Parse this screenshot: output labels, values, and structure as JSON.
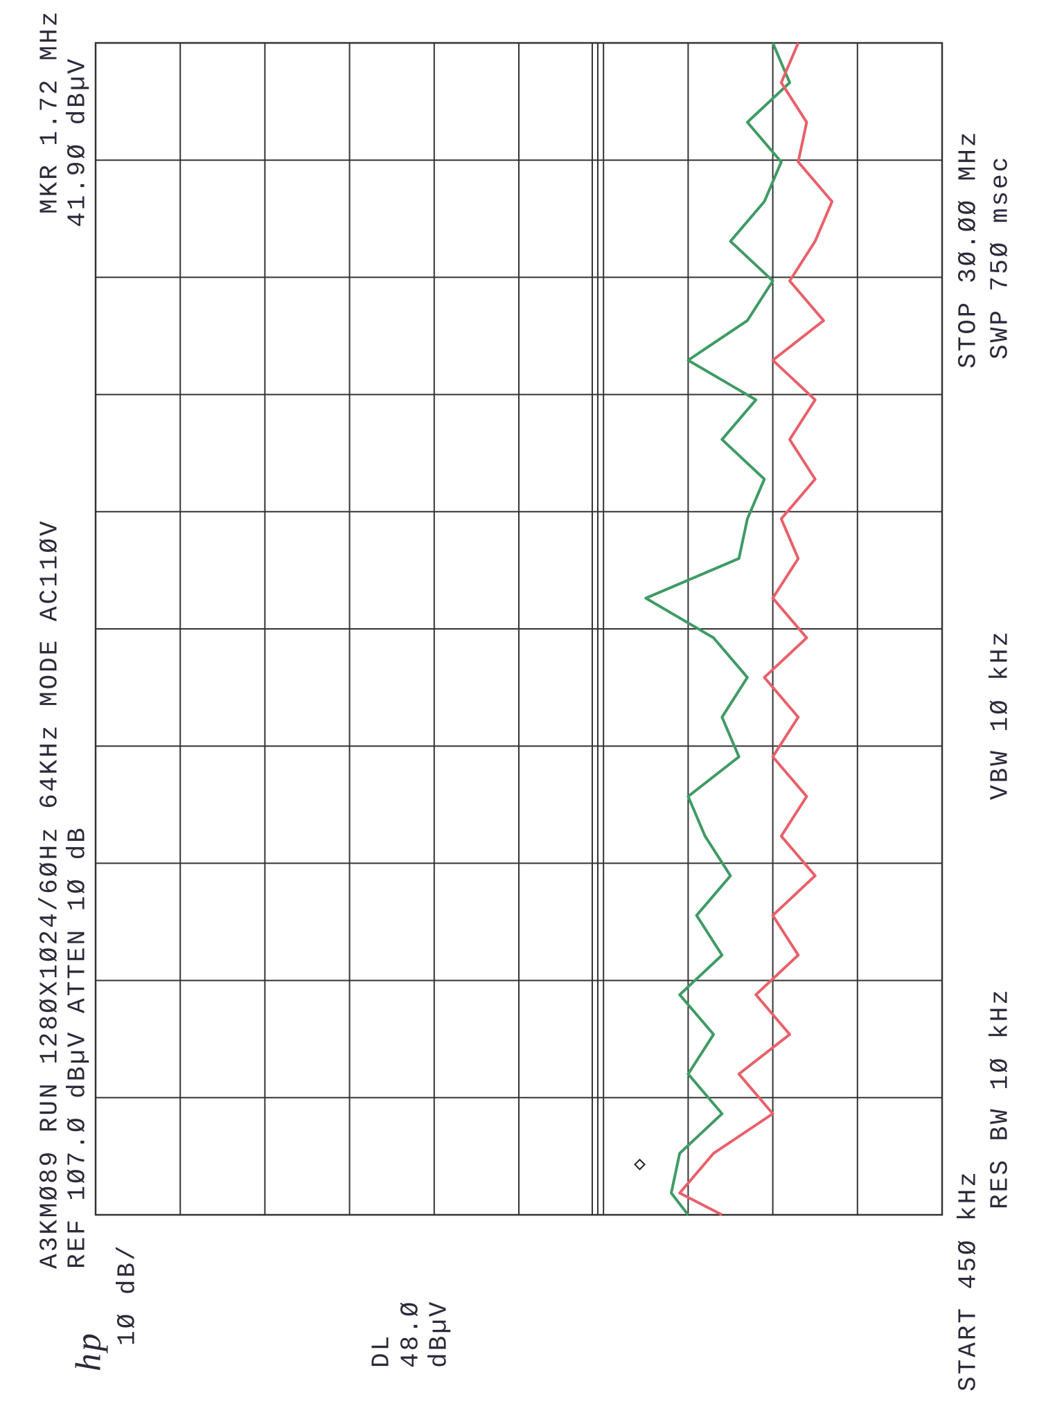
{
  "chart_data": {
    "type": "line",
    "title": "A3KMØ89 RUN 128ØX1Ø24/6ØHz 64KHz MODE AC11ØV",
    "marker_label": "MKR 1.72 MHz",
    "ref_label": "REF 1Ø7.Ø dBµV ATTEN 1Ø dB",
    "marker_value_label": "41.9Ø dBµV",
    "logo": "hp",
    "scale_label": "1Ø dB/",
    "dl_label": "DL",
    "dl_value_label": "48.Ø",
    "dl_unit_label": "dBµV",
    "start_label": "START 45Ø kHz",
    "rbw_label": "RES BW 1Ø kHz",
    "vbw_label": "VBW 1Ø kHz",
    "stop_label": "STOP 3Ø.ØØ MHz",
    "sweep_label": "SWP 75Ø msec",
    "xlim": [
      0.45,
      30
    ],
    "ylim": [
      7,
      107
    ],
    "grid": true,
    "display_line": 48,
    "marker": {
      "x": 1.72,
      "y": 41.9
    },
    "x": [
      0.45,
      1,
      2,
      3,
      4,
      5,
      6,
      7,
      8,
      9,
      10,
      11,
      12,
      13,
      14,
      15,
      16,
      17,
      18,
      19,
      20,
      21,
      22,
      23,
      24,
      25,
      26,
      27,
      28,
      29,
      30
    ],
    "series": [
      {
        "color": "#3f9a64",
        "values": [
          37,
          39,
          38,
          33,
          37,
          34,
          38,
          33,
          36,
          32,
          35,
          37,
          31,
          33,
          30,
          34,
          42,
          31,
          30,
          28,
          33,
          29,
          37,
          30,
          27,
          32,
          28,
          26,
          30,
          25,
          27
        ]
      },
      {
        "color": "#e8606a",
        "values": [
          33,
          38,
          34,
          27,
          31,
          25,
          29,
          24,
          27,
          22,
          26,
          23,
          27,
          24,
          28,
          23,
          27,
          24,
          26,
          22,
          25,
          22,
          27,
          21,
          25,
          22,
          20,
          24,
          23,
          26,
          24
        ]
      }
    ]
  }
}
